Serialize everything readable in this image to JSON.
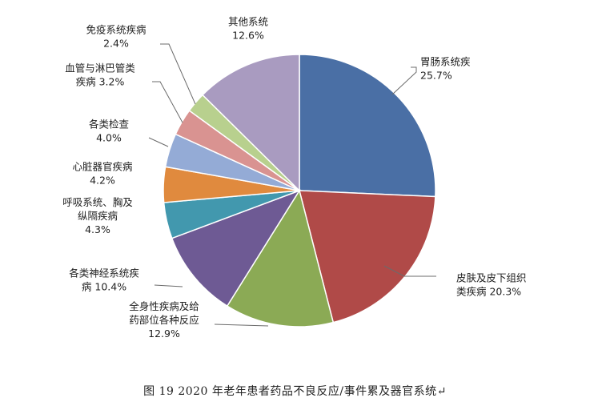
{
  "chart_data": {
    "type": "pie",
    "caption": "图 19    2020 年老年患者药品不良反应/事件累及器官系统↵",
    "slices": [
      {
        "label_lines": [
          "胃肠系统疾",
          "25.7%"
        ],
        "value": 25.7,
        "color": "#4A6FA5"
      },
      {
        "label_lines": [
          "皮肤及皮下组织",
          "类疾病 20.3%"
        ],
        "value": 20.3,
        "color": "#B04A48"
      },
      {
        "label_lines": [
          "全身性疾病及给",
          "药部位各种反应",
          "12.9%"
        ],
        "value": 12.9,
        "color": "#8BAA55"
      },
      {
        "label_lines": [
          "各类神经系统疾",
          "病 10.4%"
        ],
        "value": 10.4,
        "color": "#6E5A94"
      },
      {
        "label_lines": [
          "呼吸系统、胸及",
          "纵隔疾病",
          "4.3%"
        ],
        "value": 4.3,
        "color": "#4298AE"
      },
      {
        "label_lines": [
          "心脏器官疾病",
          "4.2%"
        ],
        "value": 4.2,
        "color": "#E08A3E"
      },
      {
        "label_lines": [
          "各类检查",
          "4.0%"
        ],
        "value": 4.0,
        "color": "#94ABD6"
      },
      {
        "label_lines": [
          "血管与淋巴管类",
          "疾病 3.2%"
        ],
        "value": 3.2,
        "color": "#D99391"
      },
      {
        "label_lines": [
          "免疫系统疾病",
          "2.4%"
        ],
        "value": 2.4,
        "color": "#B8D08E"
      },
      {
        "label_lines": [
          "其他系统",
          "12.6%"
        ],
        "value": 12.6,
        "color": "#A99BC0"
      }
    ]
  }
}
